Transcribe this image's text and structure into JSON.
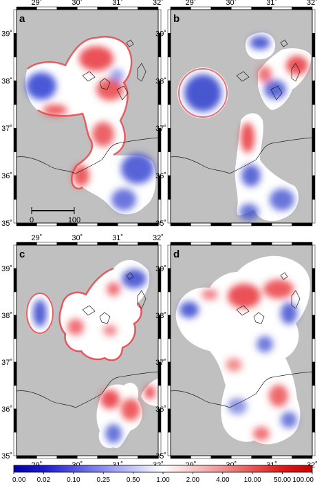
{
  "panels": [
    {
      "label": "a",
      "scale_bar": {
        "start_label": "0",
        "end_label": "100"
      }
    },
    {
      "label": "b"
    },
    {
      "label": "c"
    },
    {
      "label": "d"
    }
  ],
  "axes": {
    "lon_ticks": [
      "29˚",
      "30˚",
      "31˚",
      "32˚"
    ],
    "lat_ticks": [
      "39˚",
      "38˚",
      "37˚",
      "36˚",
      "35˚"
    ],
    "lon_range": [
      28.5,
      32
    ],
    "lat_range": [
      35,
      39.5
    ]
  },
  "colorbar": {
    "tick_labels": [
      "0.00",
      "0.02",
      "0.10",
      "0.25",
      "0.50",
      "1.00",
      "2.00",
      "4.00",
      "10.00",
      "50.00",
      "100.00"
    ],
    "colors": {
      "low": "#0000a8",
      "mid": "#ffffff",
      "high": "#c80000"
    }
  },
  "colors": {
    "background": "#c0c0c0",
    "frame": "#000000",
    "coast": "#1a1a1a"
  }
}
